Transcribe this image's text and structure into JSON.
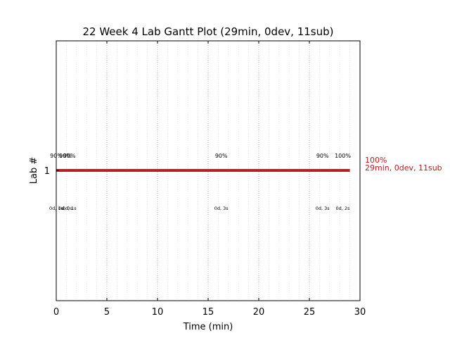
{
  "chart_data": {
    "type": "gantt",
    "title": "22 Week 4 Lab Gantt Plot (29min, 0dev, 11sub)",
    "xlabel": "Time (min)",
    "ylabel": "Lab #",
    "xlim": [
      0,
      30
    ],
    "x_ticks": [
      "0",
      "5",
      "10",
      "15",
      "20",
      "25",
      "30"
    ],
    "x_tick_values": [
      0,
      5,
      10,
      15,
      20,
      25,
      30
    ],
    "y_ticks": [
      "1"
    ],
    "grid": "vertical-dotted",
    "bar": {
      "lab": 1,
      "start": 0,
      "end": 29,
      "color": "#b22222"
    },
    "submissions": [
      {
        "x": 0.0,
        "pct": "90%",
        "dev": "0d, 1s"
      },
      {
        "x": 0.9,
        "pct": "90%",
        "dev": "0d, 0s"
      },
      {
        "x": 1.3,
        "pct": "90%",
        "dev": "0d, 1s"
      },
      {
        "x": 16.3,
        "pct": "90%",
        "dev": "0d, 3s"
      },
      {
        "x": 26.3,
        "pct": "90%",
        "dev": "0d, 3s"
      },
      {
        "x": 28.3,
        "pct": "100%",
        "dev": "0d, 2s"
      }
    ],
    "side_label": {
      "line1": "100%",
      "line2": "29min, 0dev, 11sub",
      "color": "#b22222"
    }
  }
}
